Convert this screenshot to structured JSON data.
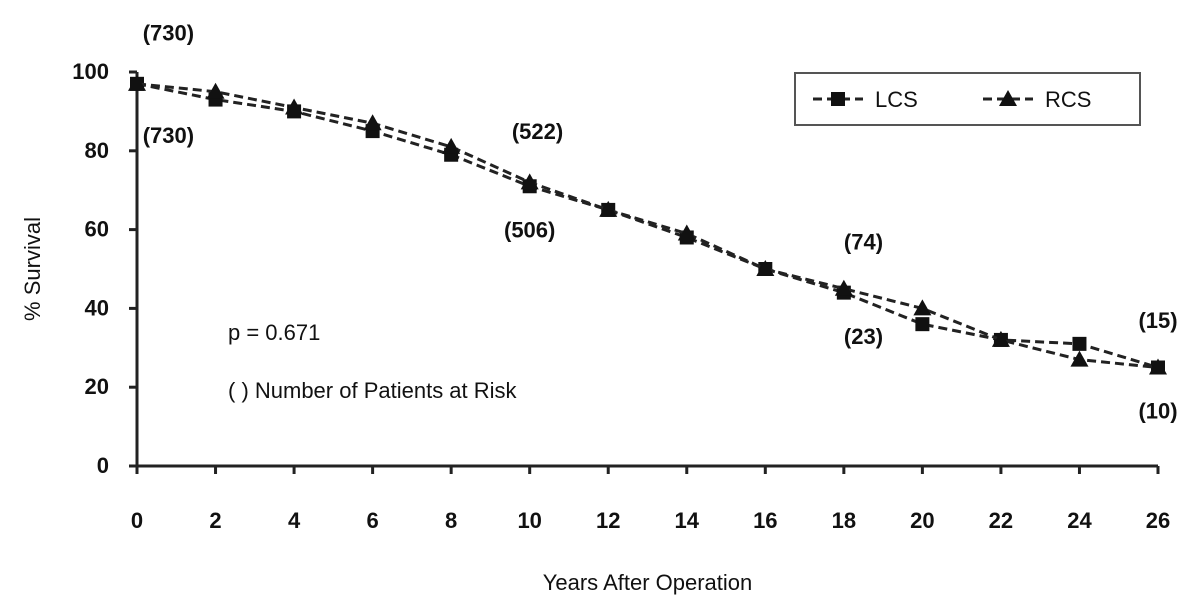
{
  "chart_data": {
    "type": "line",
    "xlabel": "Years After Operation",
    "ylabel": "% Survival",
    "xlim": [
      0,
      26
    ],
    "ylim": [
      0,
      100
    ],
    "x_ticks": [
      "0",
      "2",
      "4",
      "6",
      "8",
      "10",
      "12",
      "14",
      "16",
      "18",
      "20",
      "22",
      "24",
      "26"
    ],
    "y_ticks": [
      "0",
      "20",
      "40",
      "60",
      "80",
      "100"
    ],
    "grid": false,
    "legend_position": "top-right",
    "series": [
      {
        "name": "LCS",
        "marker": "square",
        "x": [
          0,
          2,
          4,
          6,
          8,
          10,
          12,
          14,
          16,
          18,
          20,
          22,
          24,
          26
        ],
        "y": [
          97,
          93,
          90,
          85,
          79,
          71,
          65,
          58,
          50,
          44,
          36,
          32,
          31,
          25
        ]
      },
      {
        "name": "RCS",
        "marker": "triangle",
        "x": [
          0,
          2,
          4,
          6,
          8,
          10,
          12,
          14,
          16,
          18,
          20,
          22,
          24,
          26
        ],
        "y": [
          97,
          95,
          91,
          87,
          81,
          72,
          65,
          59,
          50,
          45,
          40,
          32,
          27,
          25
        ]
      }
    ],
    "annotations": {
      "p_value": "p = 0.671",
      "risk_note": "( ) Number of Patients at Risk"
    },
    "risk_labels": [
      {
        "text": "(730)",
        "x": 0.8,
        "y": 108
      },
      {
        "text": "(730)",
        "x": 0.8,
        "y": 82
      },
      {
        "text": "(522)",
        "x": 10.2,
        "y": 83
      },
      {
        "text": "(506)",
        "x": 10.0,
        "y": 58
      },
      {
        "text": "(74)",
        "x": 18.5,
        "y": 55
      },
      {
        "text": "(23)",
        "x": 18.5,
        "y": 31
      },
      {
        "text": "(15)",
        "x": 26.0,
        "y": 35
      },
      {
        "text": "(10)",
        "x": 26.0,
        "y": 12
      }
    ]
  }
}
